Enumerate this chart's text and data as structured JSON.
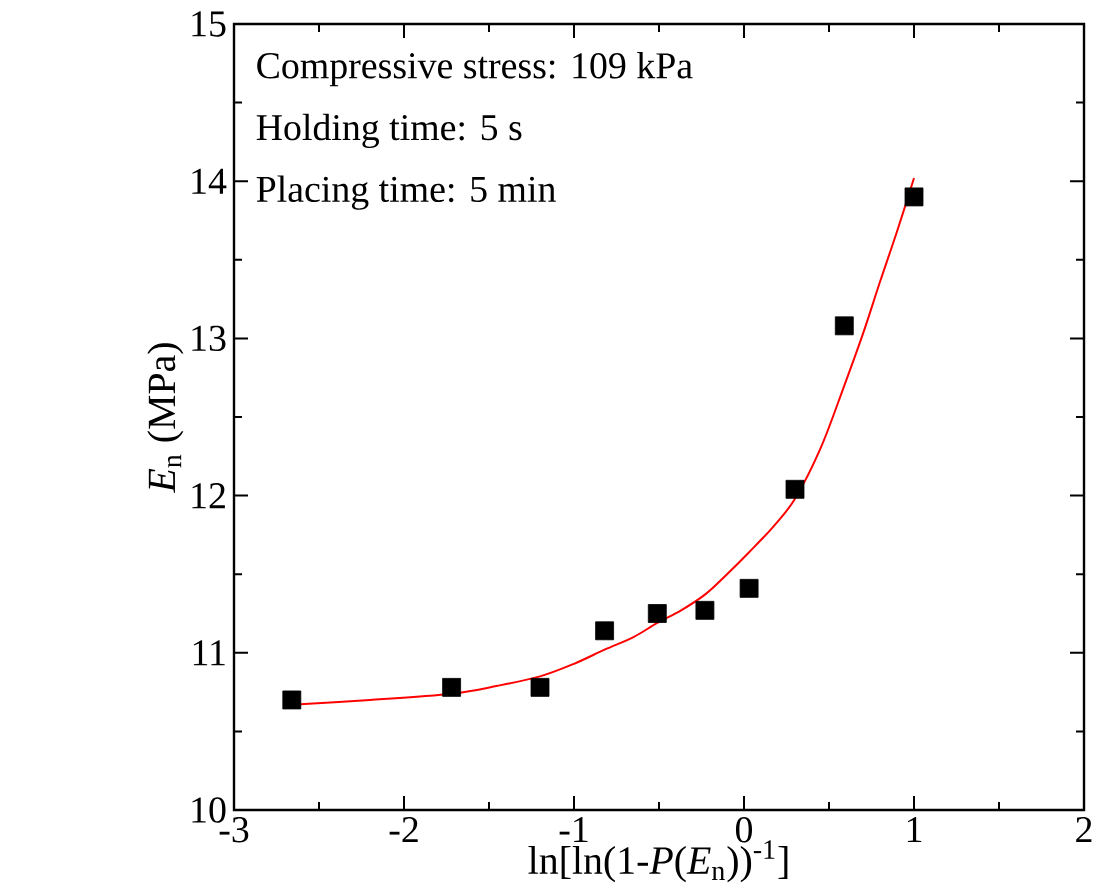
{
  "chart_data": {
    "type": "scatter",
    "xlabel": "ln[ln(1-*P*(*E*$_{n}$))$^{-1}$]",
    "ylabel": "*E*$_{n}$ (MPa)",
    "annotations": [
      "Compressive stress: 109 kPa",
      "Holding time: 5 s",
      "Placing time: 5 min"
    ],
    "xlim": [
      -3,
      2
    ],
    "ylim": [
      10,
      15
    ],
    "xticks": [
      -3,
      -2,
      -1,
      0,
      1,
      2
    ],
    "yticks": [
      10,
      11,
      12,
      13,
      14,
      15
    ],
    "grid": false,
    "series": [
      {
        "color": "#000000",
        "marker": "square",
        "x": [
          -2.66,
          -1.72,
          -1.2,
          -0.82,
          -0.51,
          -0.23,
          0.03,
          0.3,
          0.59,
          1.0
        ],
        "values": [
          10.7,
          10.78,
          10.78,
          11.14,
          11.25,
          11.27,
          11.41,
          12.04,
          13.08,
          13.9
        ]
      },
      {
        "type": "line",
        "color": "#ff0000",
        "marker": "none",
        "line_style": "solid",
        "x": [
          -2.66,
          -2.2,
          -1.72,
          -1.45,
          -1.2,
          -1.0,
          -0.82,
          -0.65,
          -0.51,
          -0.37,
          -0.23,
          -0.1,
          0.03,
          0.17,
          0.3,
          0.45,
          0.59,
          0.7,
          0.8,
          0.9,
          1.0
        ],
        "values": [
          10.67,
          10.7,
          10.74,
          10.79,
          10.85,
          10.93,
          11.02,
          11.1,
          11.19,
          11.27,
          11.37,
          11.5,
          11.64,
          11.8,
          11.98,
          12.3,
          12.7,
          13.03,
          13.36,
          13.68,
          14.02
        ]
      }
    ]
  }
}
